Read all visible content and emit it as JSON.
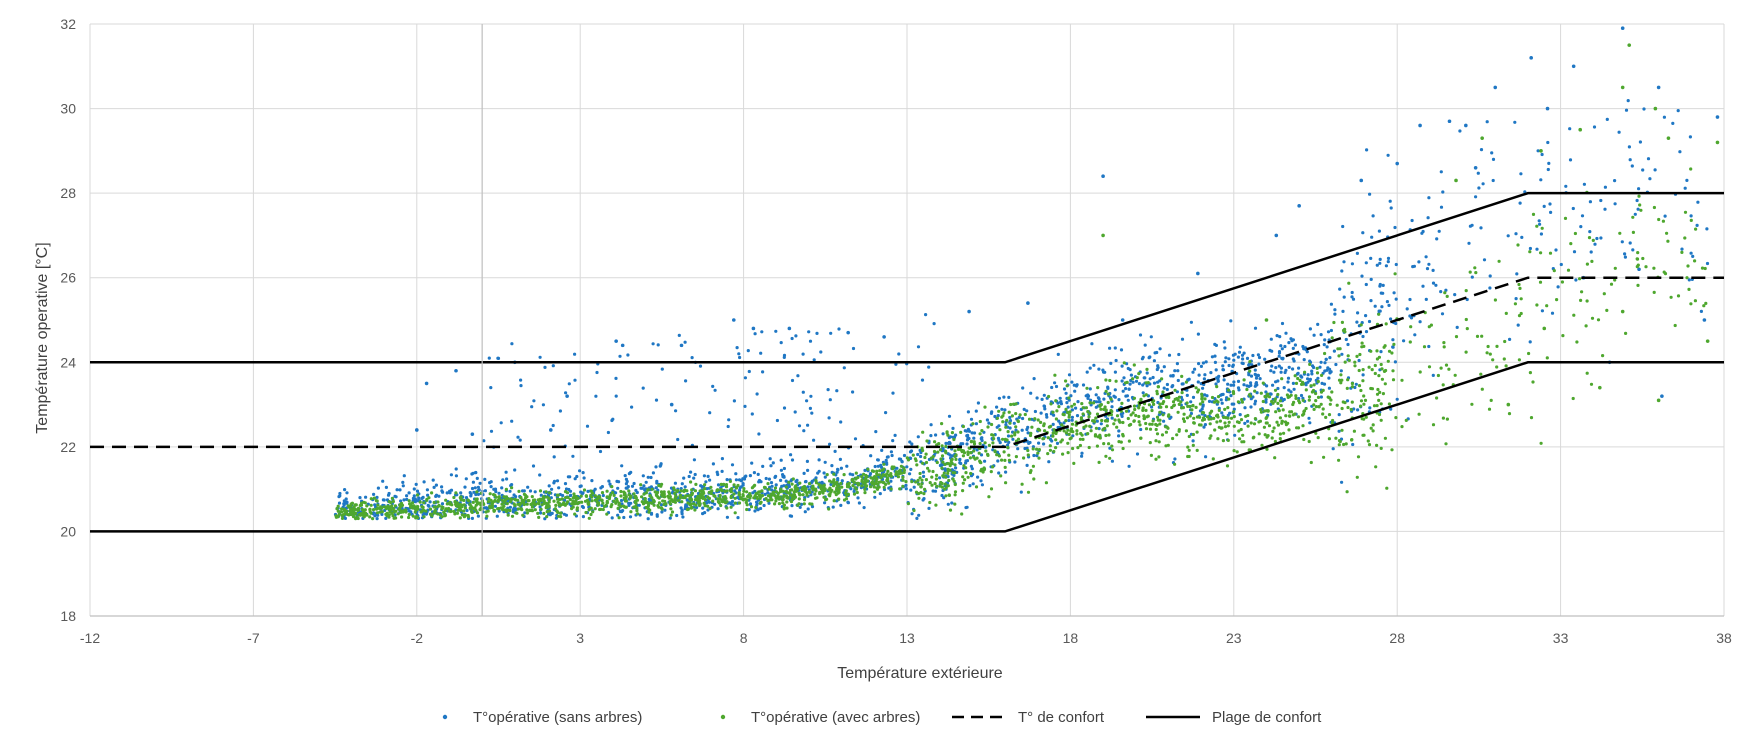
{
  "chart_data": {
    "type": "scatter",
    "title": "",
    "xlabel": "Température extérieure",
    "ylabel": "Température operative [°C]",
    "xlim": [
      -12,
      38
    ],
    "ylim": [
      18,
      32
    ],
    "xticks": [
      -12,
      -7,
      -2,
      3,
      8,
      13,
      18,
      23,
      28,
      33,
      38
    ],
    "yticks": [
      18,
      20,
      22,
      24,
      26,
      28,
      30,
      32
    ],
    "grid": true,
    "legend_position": "bottom",
    "series": [
      {
        "name": "T°opérative (sans arbres)",
        "kind": "scatter",
        "color": "#1f77c4",
        "marker": "dot",
        "trend": [
          [
            -4.5,
            20.5
          ],
          [
            0,
            20.7
          ],
          [
            5,
            20.8
          ],
          [
            10,
            21.0
          ],
          [
            14,
            21.6
          ],
          [
            16,
            22.3
          ],
          [
            18,
            22.9
          ],
          [
            20,
            23.3
          ],
          [
            23,
            23.4
          ],
          [
            26,
            24.0
          ],
          [
            28,
            25.5
          ],
          [
            30,
            27.0
          ],
          [
            32,
            27.5
          ],
          [
            37.5,
            28.0
          ]
        ],
        "values": [
          [
            -2.0,
            22.4
          ],
          [
            -1.7,
            23.5
          ],
          [
            -0.8,
            23.8
          ],
          [
            -0.3,
            22.3
          ],
          [
            1.0,
            24.0
          ],
          [
            2.1,
            22.4
          ],
          [
            2.6,
            23.2
          ],
          [
            4.1,
            24.5
          ],
          [
            4.3,
            24.4
          ],
          [
            5.8,
            23.0
          ],
          [
            6.1,
            24.4
          ],
          [
            7.7,
            25.0
          ],
          [
            8.3,
            24.8
          ],
          [
            9.4,
            24.8
          ],
          [
            11.2,
            24.7
          ],
          [
            12.3,
            24.6
          ],
          [
            14.9,
            25.2
          ],
          [
            16.7,
            25.4
          ],
          [
            19.0,
            28.4
          ],
          [
            19.6,
            25.0
          ],
          [
            21.9,
            26.1
          ],
          [
            24.3,
            27.0
          ],
          [
            25.0,
            27.7
          ],
          [
            26.9,
            28.3
          ],
          [
            28.0,
            28.7
          ],
          [
            28.7,
            29.6
          ],
          [
            29.6,
            29.7
          ],
          [
            30.1,
            29.6
          ],
          [
            30.4,
            28.6
          ],
          [
            31.0,
            30.5
          ],
          [
            32.1,
            31.2
          ],
          [
            32.6,
            30.0
          ],
          [
            33.4,
            31.0
          ],
          [
            34.9,
            31.9
          ],
          [
            36.0,
            30.5
          ],
          [
            37.8,
            29.8
          ],
          [
            35.4,
            26.2
          ],
          [
            33.7,
            26.0
          ],
          [
            37.4,
            25.0
          ],
          [
            36.1,
            23.2
          ],
          [
            34.5,
            24.0
          ]
        ]
      },
      {
        "name": "T°opérative (avec arbres)",
        "kind": "scatter",
        "color": "#4ea72e",
        "marker": "dot",
        "trend": [
          [
            -4.5,
            20.45
          ],
          [
            0,
            20.6
          ],
          [
            5,
            20.75
          ],
          [
            10,
            20.9
          ],
          [
            14,
            21.5
          ],
          [
            16,
            22.1
          ],
          [
            18,
            22.5
          ],
          [
            20,
            22.8
          ],
          [
            23,
            22.7
          ],
          [
            26,
            23.1
          ],
          [
            28,
            23.6
          ],
          [
            30,
            24.5
          ],
          [
            32,
            25.2
          ],
          [
            37.5,
            26.5
          ]
        ],
        "values": [
          [
            -3.8,
            20.5
          ],
          [
            -1.8,
            20.5
          ],
          [
            19.0,
            27.0
          ],
          [
            24.0,
            25.0
          ],
          [
            29.8,
            28.3
          ],
          [
            30.6,
            29.3
          ],
          [
            32.4,
            29.0
          ],
          [
            33.6,
            29.5
          ],
          [
            34.9,
            30.5
          ],
          [
            35.1,
            31.5
          ],
          [
            35.9,
            30.0
          ],
          [
            37.8,
            29.2
          ],
          [
            36.3,
            29.3
          ],
          [
            37.5,
            24.5
          ],
          [
            36.0,
            23.1
          ],
          [
            34.9,
            25.2
          ],
          [
            34.2,
            23.4
          ],
          [
            32.5,
            24.8
          ],
          [
            31.4,
            23.0
          ]
        ]
      },
      {
        "name": "T° de confort",
        "kind": "line",
        "style": "dashed",
        "color": "#000000",
        "points": [
          [
            -12,
            22
          ],
          [
            16,
            22
          ],
          [
            32,
            26
          ],
          [
            38,
            26
          ]
        ]
      },
      {
        "name": "Plage de confort",
        "kind": "line",
        "style": "solid",
        "color": "#000000",
        "points_upper": [
          [
            -12,
            24
          ],
          [
            16,
            24
          ],
          [
            32,
            28
          ],
          [
            38,
            28
          ]
        ],
        "points_lower": [
          [
            -12,
            20
          ],
          [
            16,
            20
          ],
          [
            32,
            24
          ],
          [
            38,
            24
          ]
        ]
      }
    ]
  }
}
